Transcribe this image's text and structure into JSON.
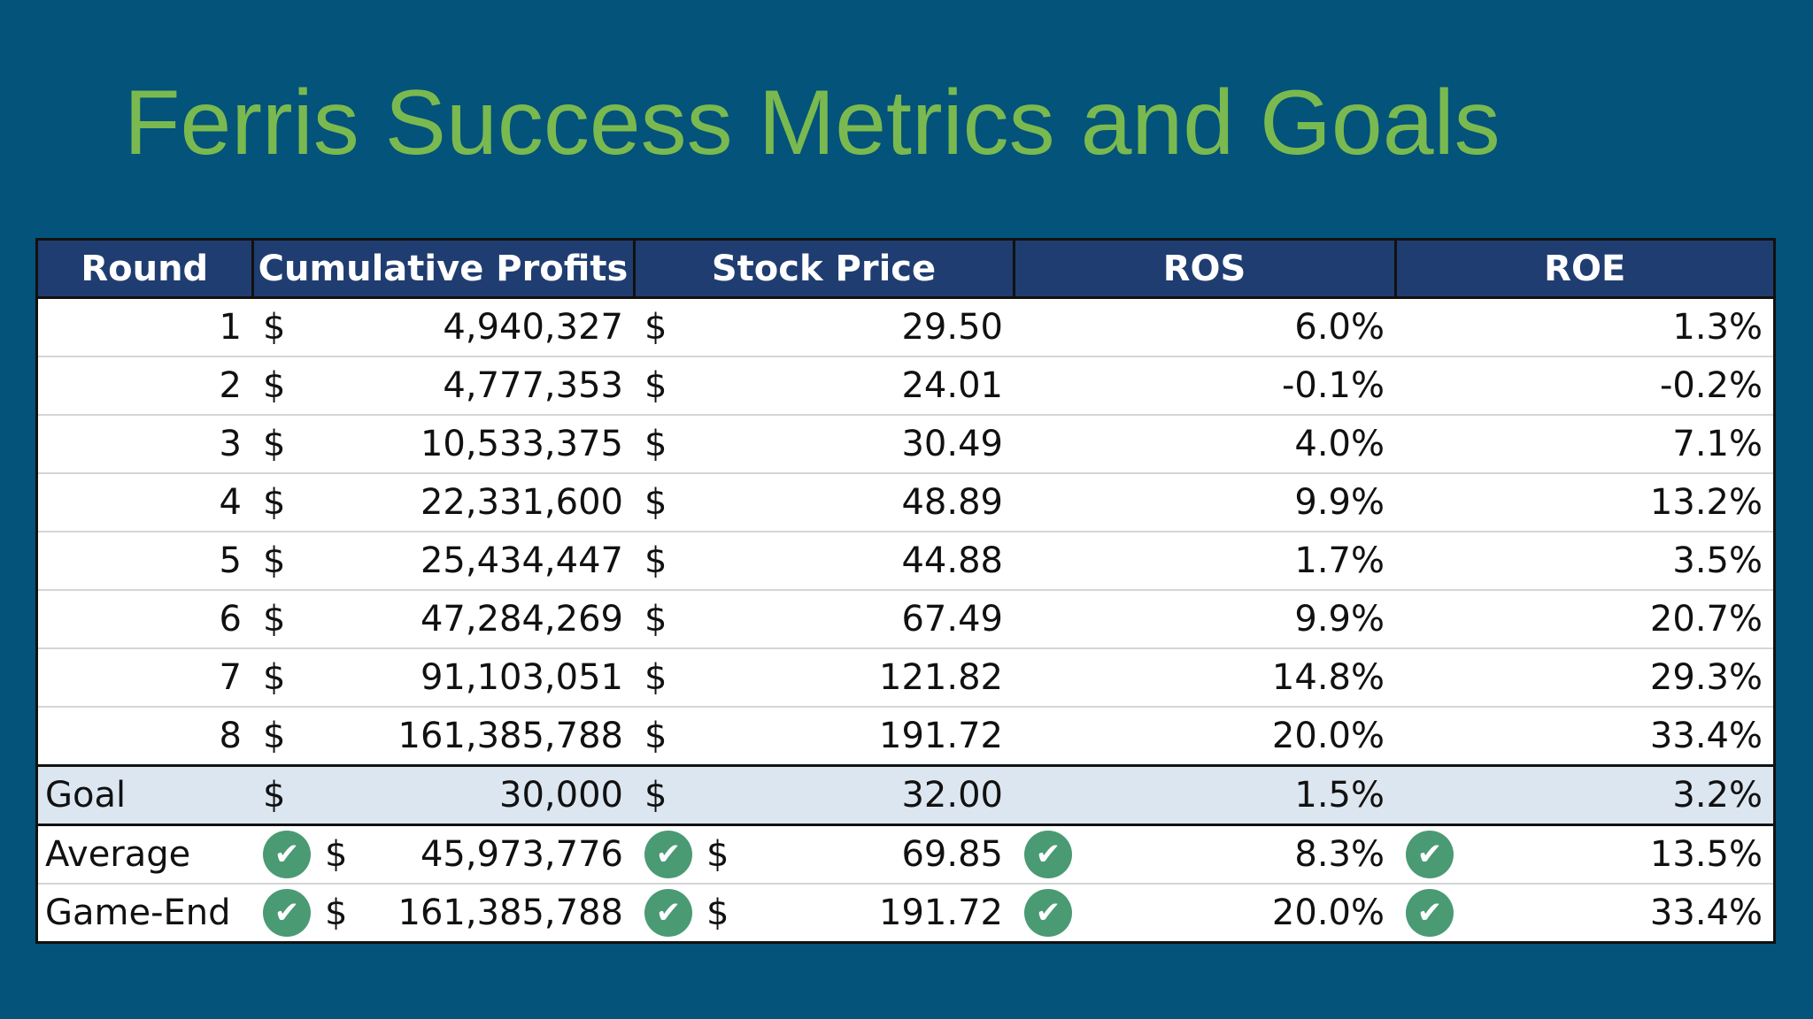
{
  "title": "Ferris Success Metrics and Goals",
  "headers": [
    "Round",
    "Cumulative Profits",
    "Stock Price",
    "ROS",
    "ROE"
  ],
  "currency_symbol": "$",
  "rounds": [
    {
      "round": "1",
      "profits": "4,940,327",
      "stock": "29.50",
      "ros": "6.0%",
      "roe": "1.3%"
    },
    {
      "round": "2",
      "profits": "4,777,353",
      "stock": "24.01",
      "ros": "-0.1%",
      "roe": "-0.2%"
    },
    {
      "round": "3",
      "profits": "10,533,375",
      "stock": "30.49",
      "ros": "4.0%",
      "roe": "7.1%"
    },
    {
      "round": "4",
      "profits": "22,331,600",
      "stock": "48.89",
      "ros": "9.9%",
      "roe": "13.2%"
    },
    {
      "round": "5",
      "profits": "25,434,447",
      "stock": "44.88",
      "ros": "1.7%",
      "roe": "3.5%"
    },
    {
      "round": "6",
      "profits": "47,284,269",
      "stock": "67.49",
      "ros": "9.9%",
      "roe": "20.7%"
    },
    {
      "round": "7",
      "profits": "91,103,051",
      "stock": "121.82",
      "ros": "14.8%",
      "roe": "29.3%"
    },
    {
      "round": "8",
      "profits": "161,385,788",
      "stock": "191.72",
      "ros": "20.0%",
      "roe": "33.4%"
    }
  ],
  "goal": {
    "label": "Goal",
    "profits": "30,000",
    "stock": "32.00",
    "ros": "1.5%",
    "roe": "3.2%"
  },
  "summary": [
    {
      "label": "Average",
      "profits": "45,973,776",
      "stock": "69.85",
      "ros": "8.3%",
      "roe": "13.5%"
    },
    {
      "label": "Game-End",
      "profits": "161,385,788",
      "stock": "191.72",
      "ros": "20.0%",
      "roe": "33.4%"
    }
  ],
  "check_icon": "check-circle-icon",
  "colors": {
    "background": "#03537a",
    "title": "#7ab94f",
    "header_bg": "#1f3d70",
    "goal_bg": "#dce6f1",
    "check": "#4a9a74"
  }
}
